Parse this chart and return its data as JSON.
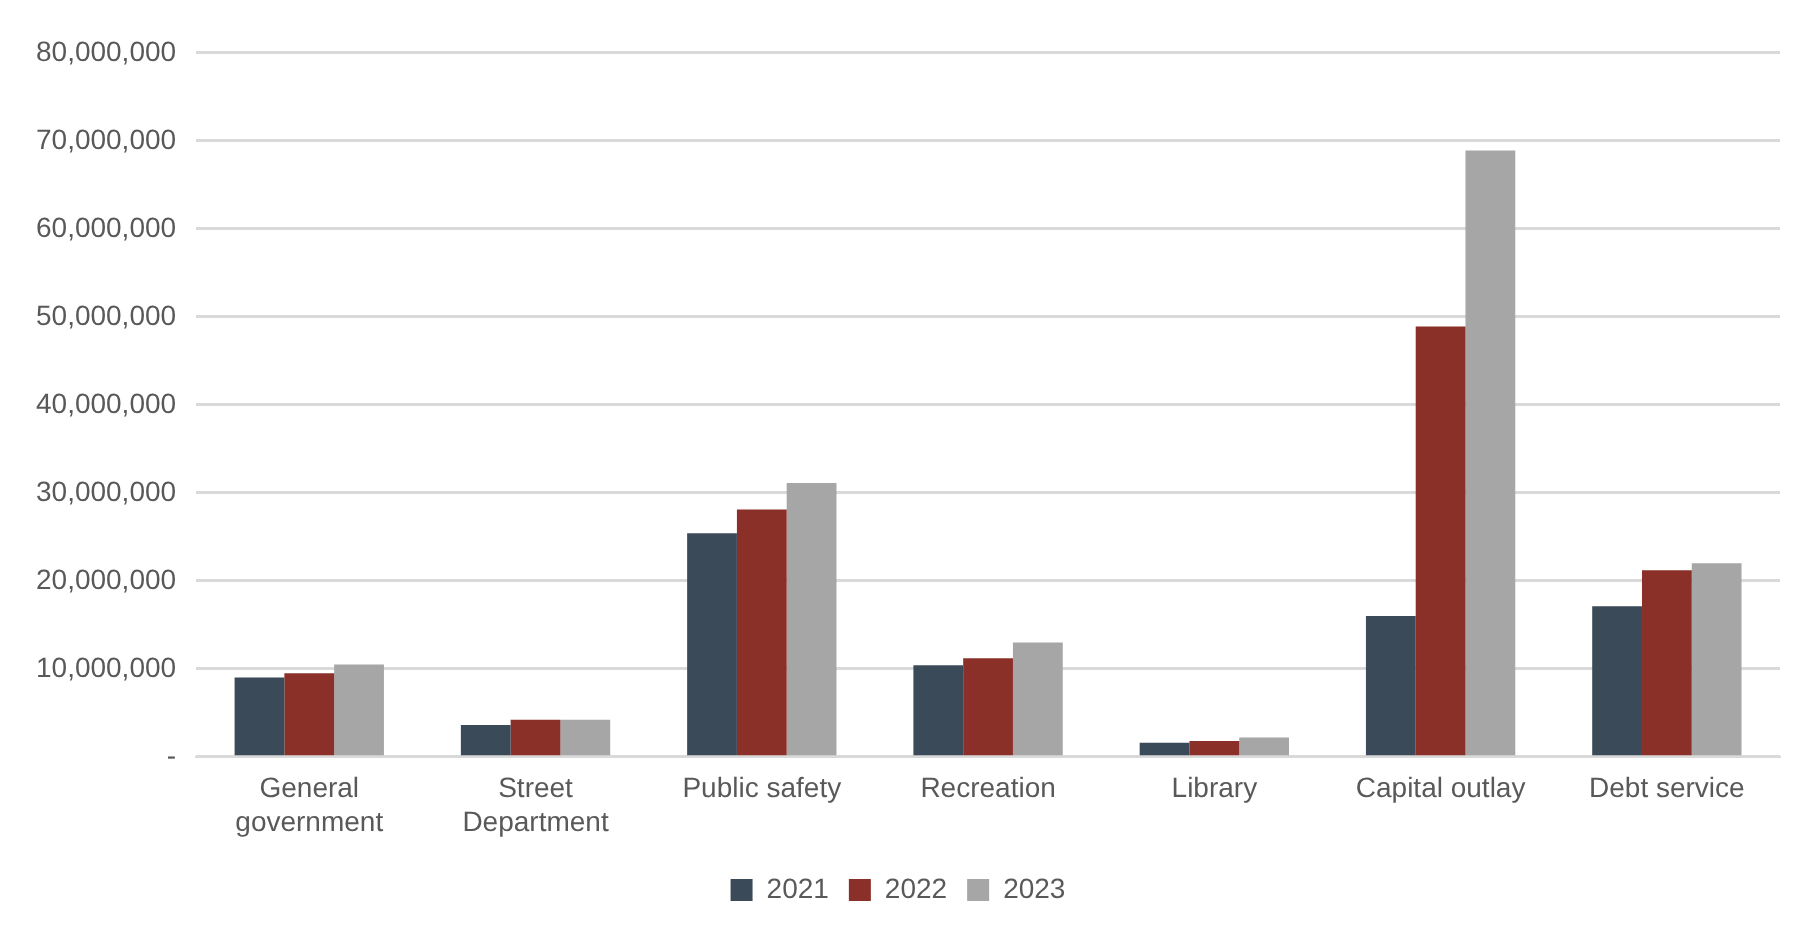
{
  "chart_data": {
    "type": "bar",
    "categories": [
      "General government",
      "Street Department",
      "Public safety",
      "Recreation",
      "Library",
      "Capital outlay",
      "Debt service"
    ],
    "series": [
      {
        "name": "2021",
        "color": "#3b4a58",
        "values": [
          9000000,
          3600000,
          25400000,
          10400000,
          1600000,
          16000000,
          17100000
        ]
      },
      {
        "name": "2022",
        "color": "#8b3028",
        "values": [
          9500000,
          4200000,
          28100000,
          11200000,
          1800000,
          48900000,
          21200000
        ]
      },
      {
        "name": "2023",
        "color": "#a6a6a6",
        "values": [
          10500000,
          4200000,
          31100000,
          13000000,
          2200000,
          68900000,
          22000000
        ]
      }
    ],
    "ylim": [
      0,
      80000000
    ],
    "yticks": [
      {
        "value": 0,
        "label": "-"
      },
      {
        "value": 10000000,
        "label": "10,000,000"
      },
      {
        "value": 20000000,
        "label": "20,000,000"
      },
      {
        "value": 30000000,
        "label": "30,000,000"
      },
      {
        "value": 40000000,
        "label": "40,000,000"
      },
      {
        "value": 50000000,
        "label": "50,000,000"
      },
      {
        "value": 60000000,
        "label": "60,000,000"
      },
      {
        "value": 70000000,
        "label": "70,000,000"
      },
      {
        "value": 80000000,
        "label": "80,000,000"
      }
    ],
    "grid": "y",
    "legend": "bottom"
  }
}
